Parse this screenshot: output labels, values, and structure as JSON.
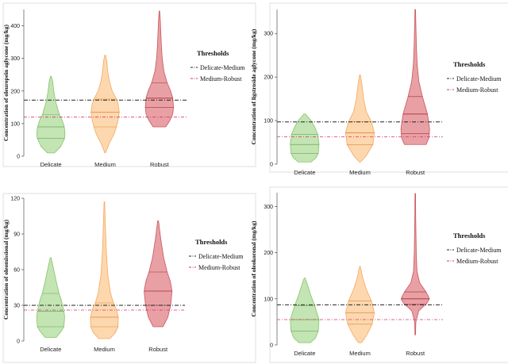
{
  "legend": {
    "title": "Thresholds",
    "items": [
      {
        "label": "Delicate-Medium",
        "color": "#222222",
        "dash": "dash-dot"
      },
      {
        "label": "Medium-Robust",
        "color": "#d6336c",
        "dash": "dash-dot"
      }
    ]
  },
  "category_colors": {
    "Delicate": {
      "fill": "#b9dfa6",
      "stroke": "#86c36c",
      "line": "#6aa85a"
    },
    "Medium": {
      "fill": "#fdd0a0",
      "stroke": "#f5a95f",
      "line": "#d98a3e"
    },
    "Robust": {
      "fill": "#e48f94",
      "stroke": "#c9555e",
      "line": "#a3323c"
    }
  },
  "chart_data": [
    {
      "type": "violin",
      "ylabel": "Concentration of oleuropein aglycone (mg/kg)",
      "categories": [
        "Delicate",
        "Medium",
        "Robust"
      ],
      "yticks": [
        0,
        100,
        200,
        300,
        400
      ],
      "ylim": [
        0,
        450
      ],
      "thresholds": {
        "Delicate-Medium": 172,
        "Medium-Robust": 120
      },
      "series": [
        {
          "category": "Delicate",
          "min": 10,
          "max": 245,
          "q1": 55,
          "median": 90,
          "q3": 128,
          "profile": [
            [
              10,
              0.25
            ],
            [
              30,
              0.7
            ],
            [
              55,
              0.97
            ],
            [
              70,
              1.0
            ],
            [
              90,
              0.95
            ],
            [
              110,
              0.8
            ],
            [
              128,
              0.6
            ],
            [
              150,
              0.45
            ],
            [
              170,
              0.32
            ],
            [
              200,
              0.2
            ],
            [
              230,
              0.12
            ],
            [
              245,
              0.03
            ]
          ]
        },
        {
          "category": "Medium",
          "min": 10,
          "max": 310,
          "q1": 90,
          "median": 135,
          "q3": 175,
          "profile": [
            [
              10,
              0.02
            ],
            [
              40,
              0.3
            ],
            [
              70,
              0.65
            ],
            [
              90,
              0.8
            ],
            [
              110,
              0.92
            ],
            [
              135,
              1.0
            ],
            [
              160,
              0.92
            ],
            [
              175,
              0.8
            ],
            [
              200,
              0.5
            ],
            [
              230,
              0.3
            ],
            [
              260,
              0.18
            ],
            [
              290,
              0.12
            ],
            [
              310,
              0.03
            ]
          ]
        },
        {
          "category": "Robust",
          "min": 90,
          "max": 445,
          "q1": 150,
          "median": 178,
          "q3": 225,
          "profile": [
            [
              90,
              0.45
            ],
            [
              110,
              0.75
            ],
            [
              130,
              0.95
            ],
            [
              150,
              1.0
            ],
            [
              178,
              0.95
            ],
            [
              200,
              0.8
            ],
            [
              225,
              0.55
            ],
            [
              260,
              0.32
            ],
            [
              300,
              0.2
            ],
            [
              340,
              0.14
            ],
            [
              380,
              0.1
            ],
            [
              420,
              0.06
            ],
            [
              445,
              0.02
            ]
          ]
        }
      ]
    },
    {
      "type": "violin",
      "ylabel": "Concentration of ligstroside aglycone (mg/kg)",
      "categories": [
        "Delicate",
        "Medium",
        "Robust"
      ],
      "yticks": [
        0,
        100,
        200,
        300
      ],
      "ylim": [
        0,
        355
      ],
      "thresholds": {
        "Delicate-Medium": 97,
        "Medium-Robust": 63
      },
      "series": [
        {
          "category": "Delicate",
          "min": 5,
          "max": 115,
          "q1": 25,
          "median": 45,
          "q3": 68,
          "profile": [
            [
              5,
              0.45
            ],
            [
              15,
              0.8
            ],
            [
              25,
              0.95
            ],
            [
              45,
              1.0
            ],
            [
              68,
              0.92
            ],
            [
              85,
              0.7
            ],
            [
              100,
              0.45
            ],
            [
              115,
              0.05
            ]
          ]
        },
        {
          "category": "Medium",
          "min": 5,
          "max": 205,
          "q1": 45,
          "median": 72,
          "q3": 97,
          "profile": [
            [
              5,
              0.05
            ],
            [
              20,
              0.45
            ],
            [
              45,
              0.9
            ],
            [
              72,
              1.0
            ],
            [
              97,
              0.8
            ],
            [
              120,
              0.45
            ],
            [
              150,
              0.25
            ],
            [
              180,
              0.15
            ],
            [
              205,
              0.03
            ]
          ]
        },
        {
          "category": "Robust",
          "min": 45,
          "max": 355,
          "q1": 70,
          "median": 115,
          "q3": 155,
          "profile": [
            [
              45,
              0.75
            ],
            [
              60,
              0.95
            ],
            [
              80,
              1.0
            ],
            [
              115,
              0.85
            ],
            [
              155,
              0.5
            ],
            [
              190,
              0.25
            ],
            [
              230,
              0.13
            ],
            [
              270,
              0.08
            ],
            [
              310,
              0.05
            ],
            [
              355,
              0.02
            ]
          ]
        }
      ]
    },
    {
      "type": "violin",
      "ylabel": "Concentration of oleomissional (mg/kg)",
      "categories": [
        "Delicate",
        "Medium",
        "Robust"
      ],
      "yticks": [
        0,
        30,
        60,
        90,
        120
      ],
      "ylim": [
        0,
        120
      ],
      "thresholds": {
        "Delicate-Medium": 30,
        "Medium-Robust": 26
      },
      "series": [
        {
          "category": "Delicate",
          "min": 3,
          "max": 70,
          "q1": 12,
          "median": 25,
          "q3": 40,
          "profile": [
            [
              3,
              0.4
            ],
            [
              8,
              0.75
            ],
            [
              12,
              0.95
            ],
            [
              20,
              1.0
            ],
            [
              25,
              0.95
            ],
            [
              35,
              0.75
            ],
            [
              40,
              0.6
            ],
            [
              50,
              0.4
            ],
            [
              60,
              0.22
            ],
            [
              70,
              0.03
            ]
          ]
        },
        {
          "category": "Medium",
          "min": 2,
          "max": 117,
          "q1": 12,
          "median": 20,
          "q3": 32,
          "profile": [
            [
              2,
              0.4
            ],
            [
              7,
              0.8
            ],
            [
              12,
              0.98
            ],
            [
              20,
              1.0
            ],
            [
              27,
              0.85
            ],
            [
              32,
              0.65
            ],
            [
              40,
              0.45
            ],
            [
              55,
              0.25
            ],
            [
              75,
              0.14
            ],
            [
              95,
              0.08
            ],
            [
              117,
              0.02
            ]
          ]
        },
        {
          "category": "Robust",
          "min": 12,
          "max": 101,
          "q1": 30,
          "median": 42,
          "q3": 58,
          "profile": [
            [
              12,
              0.35
            ],
            [
              20,
              0.7
            ],
            [
              30,
              0.9
            ],
            [
              42,
              1.0
            ],
            [
              50,
              0.88
            ],
            [
              58,
              0.65
            ],
            [
              70,
              0.4
            ],
            [
              85,
              0.2
            ],
            [
              101,
              0.03
            ]
          ]
        }
      ]
    },
    {
      "type": "violin",
      "ylabel": "Concentration of oleokoronal (mg/kg)",
      "categories": [
        "Delicate",
        "Medium",
        "Robust"
      ],
      "yticks": [
        0,
        100,
        200,
        300
      ],
      "ylim": [
        0,
        330
      ],
      "thresholds": {
        "Delicate-Medium": 87,
        "Medium-Robust": 55
      },
      "series": [
        {
          "category": "Delicate",
          "min": 5,
          "max": 145,
          "q1": 30,
          "median": 55,
          "q3": 85,
          "profile": [
            [
              5,
              0.4
            ],
            [
              15,
              0.75
            ],
            [
              30,
              0.95
            ],
            [
              55,
              1.0
            ],
            [
              85,
              0.7
            ],
            [
              110,
              0.4
            ],
            [
              130,
              0.2
            ],
            [
              145,
              0.03
            ]
          ]
        },
        {
          "category": "Medium",
          "min": 5,
          "max": 170,
          "q1": 45,
          "median": 70,
          "q3": 95,
          "profile": [
            [
              5,
              0.1
            ],
            [
              20,
              0.45
            ],
            [
              45,
              0.85
            ],
            [
              70,
              1.0
            ],
            [
              95,
              0.8
            ],
            [
              120,
              0.45
            ],
            [
              145,
              0.2
            ],
            [
              170,
              0.03
            ]
          ]
        },
        {
          "category": "Robust",
          "min": 22,
          "max": 328,
          "q1": 88,
          "median": 100,
          "q3": 115,
          "profile": [
            [
              22,
              0.02
            ],
            [
              50,
              0.04
            ],
            [
              75,
              0.25
            ],
            [
              88,
              0.75
            ],
            [
              100,
              1.0
            ],
            [
              115,
              0.75
            ],
            [
              135,
              0.3
            ],
            [
              160,
              0.12
            ],
            [
              200,
              0.07
            ],
            [
              240,
              0.05
            ],
            [
              280,
              0.03
            ],
            [
              328,
              0.02
            ]
          ]
        }
      ]
    }
  ]
}
